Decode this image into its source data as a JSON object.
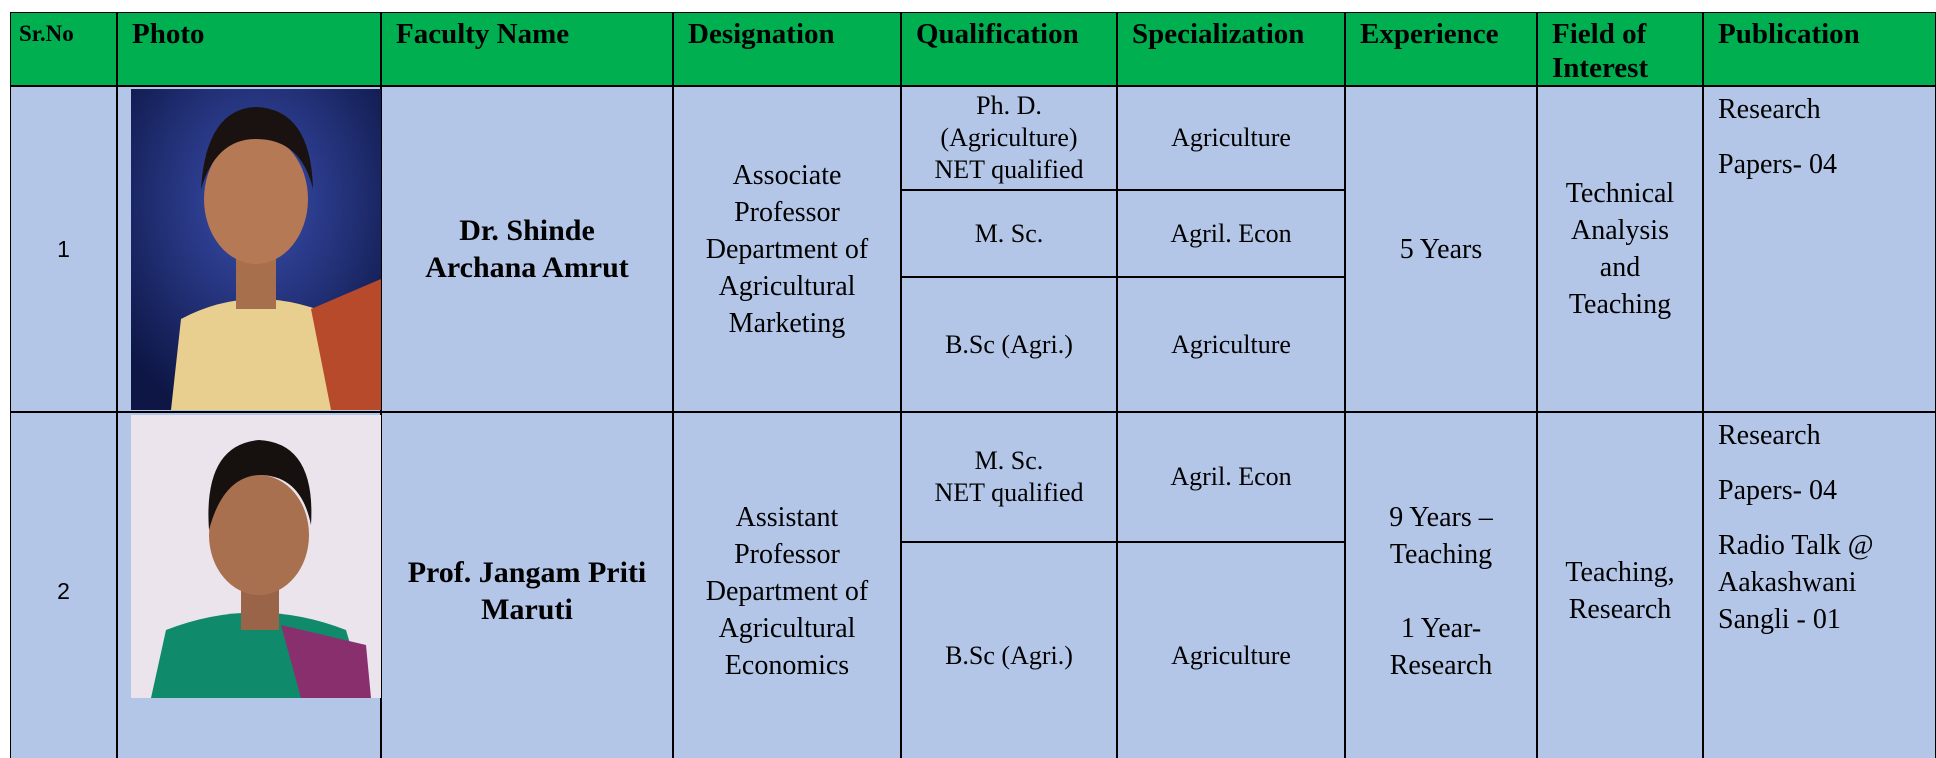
{
  "header": {
    "columns": [
      "Sr.No",
      "Photo",
      "Faculty Name",
      "Designation",
      "Qualification",
      "Specialization",
      "Experience",
      "Field of\nInterest",
      "Publication"
    ]
  },
  "rows": [
    {
      "sr_no": "1",
      "faculty_name": "Dr. Shinde\nArchana Amrut",
      "designation": "Associate\nProfessor\nDepartment of\nAgricultural\nMarketing",
      "qualifications": [
        {
          "qualification": "Ph. D.\n(Agriculture)\nNET qualified",
          "specialization": "Agriculture"
        },
        {
          "qualification": "M. Sc.",
          "specialization": "Agril. Econ"
        },
        {
          "qualification": "B.Sc (Agri.)",
          "specialization": "Agriculture"
        }
      ],
      "experience": "5 Years",
      "field_of_interest": "Technical\nAnalysis\nand\nTeaching",
      "publication": [
        "Research",
        "Papers- 04"
      ]
    },
    {
      "sr_no": "2",
      "faculty_name": "Prof. Jangam Priti\nMaruti",
      "designation": "Assistant\nProfessor\nDepartment of\nAgricultural\nEconomics",
      "qualifications": [
        {
          "qualification": "M. Sc.\nNET qualified",
          "specialization": "Agril. Econ"
        },
        {
          "qualification": "B.Sc (Agri.)",
          "specialization": "Agriculture"
        }
      ],
      "experience": "9 Years –\nTeaching\n\n1 Year-\nResearch",
      "field_of_interest": "Teaching,\nResearch",
      "publication": [
        "Research",
        "Papers- 04",
        "Radio Talk @\nAakashwani\nSangli - 01"
      ]
    }
  ]
}
